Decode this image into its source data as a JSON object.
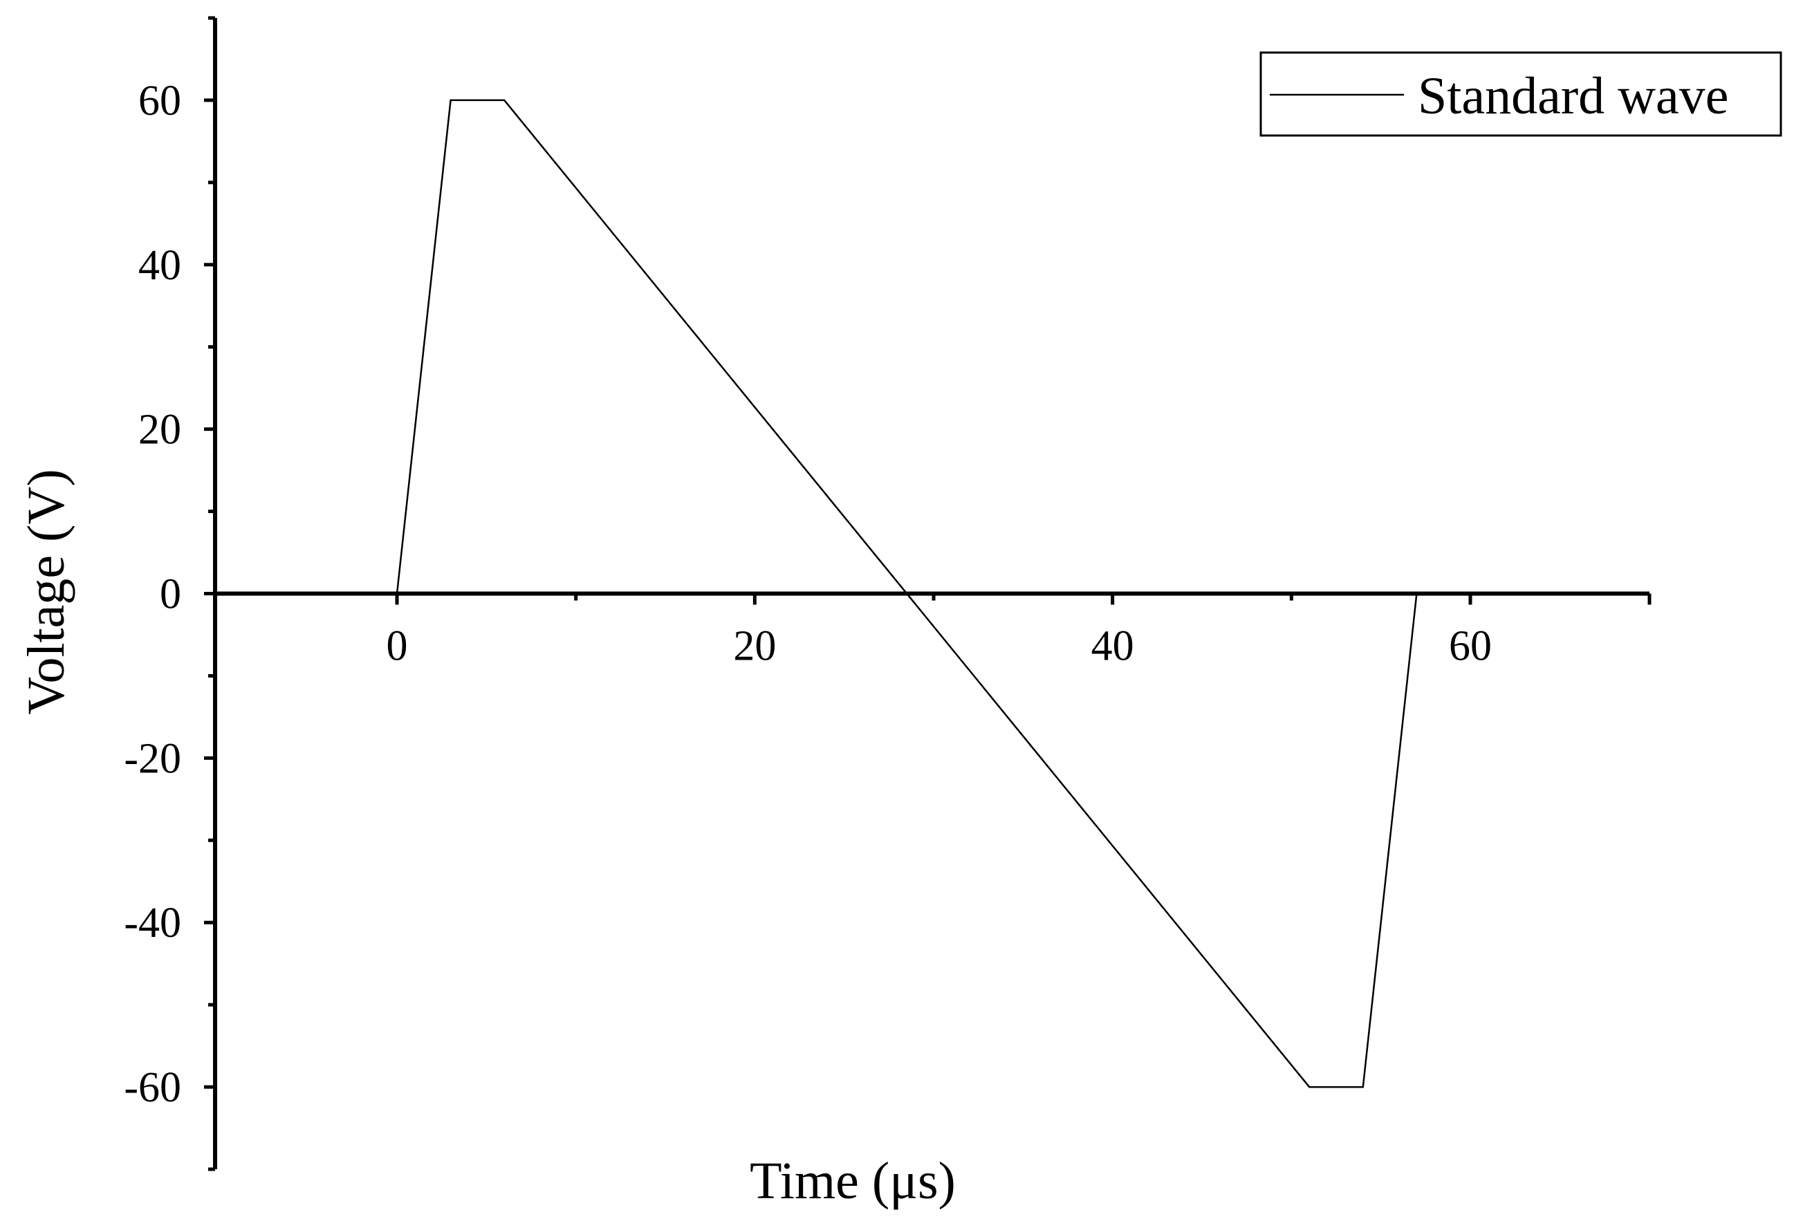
{
  "chart_data": {
    "type": "line",
    "title": "",
    "xlabel": "Time (μs)",
    "ylabel": "Voltage (V)",
    "xlim": [
      -10,
      70
    ],
    "ylim": [
      -70,
      70
    ],
    "x_ticks": [
      0,
      20,
      40,
      60
    ],
    "x_tick_labels": [
      "0",
      "20",
      "40",
      "60"
    ],
    "x_minor_ticks": [
      10,
      30,
      50
    ],
    "y_ticks": [
      -60,
      -40,
      -20,
      0,
      20,
      40,
      60
    ],
    "y_tick_labels": [
      "-60",
      "-40",
      "-20",
      "0",
      "20",
      "40",
      "60"
    ],
    "y_minor_ticks": [
      -70,
      -50,
      -30,
      -10,
      10,
      30,
      50,
      70
    ],
    "grid": false,
    "legend_position": "top-right",
    "series": [
      {
        "name": "Standard wave",
        "color": "#000000",
        "x": [
          0,
          3,
          6,
          51,
          54,
          57
        ],
        "y": [
          0,
          60,
          60,
          -60,
          -60,
          0
        ]
      }
    ]
  }
}
